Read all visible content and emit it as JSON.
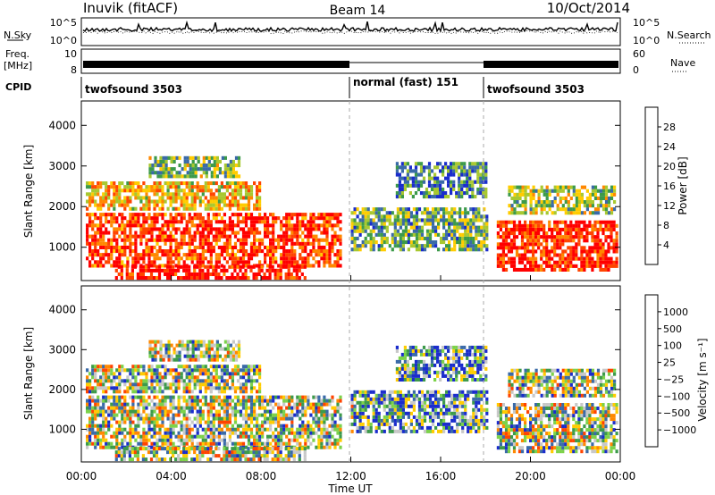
{
  "header": {
    "station": "Inuvik (fitACF)",
    "beam": "Beam 14",
    "date": "10/Oct/2014"
  },
  "panels": {
    "nsky_label": "N.Sky",
    "nsky_ticks": [
      "10^5",
      "10^0"
    ],
    "nsearch_label": "N.Search",
    "freq_label_1": "Freq.",
    "freq_label_2": "[MHz]",
    "freq_ticks": [
      "10",
      "8"
    ],
    "nave_ticks": [
      "60",
      "0"
    ],
    "nave_label": "Nave",
    "cpid_label": "CPID",
    "cpid_segments": [
      {
        "label": "twofsound 3503",
        "start": 0,
        "end": 12
      },
      {
        "label": "normal (fast) 151",
        "start": 12,
        "end": 18
      },
      {
        "label": "twofsound 3503",
        "start": 18,
        "end": 24
      }
    ]
  },
  "chart_data": [
    {
      "type": "heatmap",
      "name": "power",
      "ylabel": "Slant Range [km]",
      "yticks": [
        1000,
        2000,
        3000,
        4000
      ],
      "ylim": [
        180,
        4600
      ],
      "xlim": [
        0,
        24
      ],
      "colorbar": {
        "label": "Power [dB]",
        "ticks": [
          "28",
          "24",
          "20",
          "16",
          "12",
          "8",
          "4"
        ],
        "colors": [
          "#ff0000",
          "#ff4400",
          "#ff8800",
          "#ffcc00",
          "#a8c830",
          "#3c9a4a",
          "#3a6aa8",
          "#1a2ccc"
        ]
      }
    },
    {
      "type": "heatmap",
      "name": "velocity",
      "ylabel": "Slant Range [km]",
      "yticks": [
        1000,
        2000,
        3000,
        4000
      ],
      "ylim": [
        180,
        4600
      ],
      "xlim": [
        0,
        24
      ],
      "xlabel": "Time UT",
      "xticks": [
        "00:00",
        "04:00",
        "08:00",
        "12:00",
        "16:00",
        "20:00",
        "00:00"
      ],
      "colorbar": {
        "label": "Velocity [m s⁻¹]",
        "ticks": [
          "1000",
          "500",
          "100",
          "25",
          "−25",
          "−100",
          "−500",
          "−1000"
        ],
        "colors": [
          "#1a2ccc",
          "#3a6aa8",
          "#3c9a4a",
          "#7cd24a",
          "#c8c8c8",
          "#ffcc00",
          "#ff8800",
          "#ff4400",
          "#ff0000"
        ]
      }
    }
  ]
}
